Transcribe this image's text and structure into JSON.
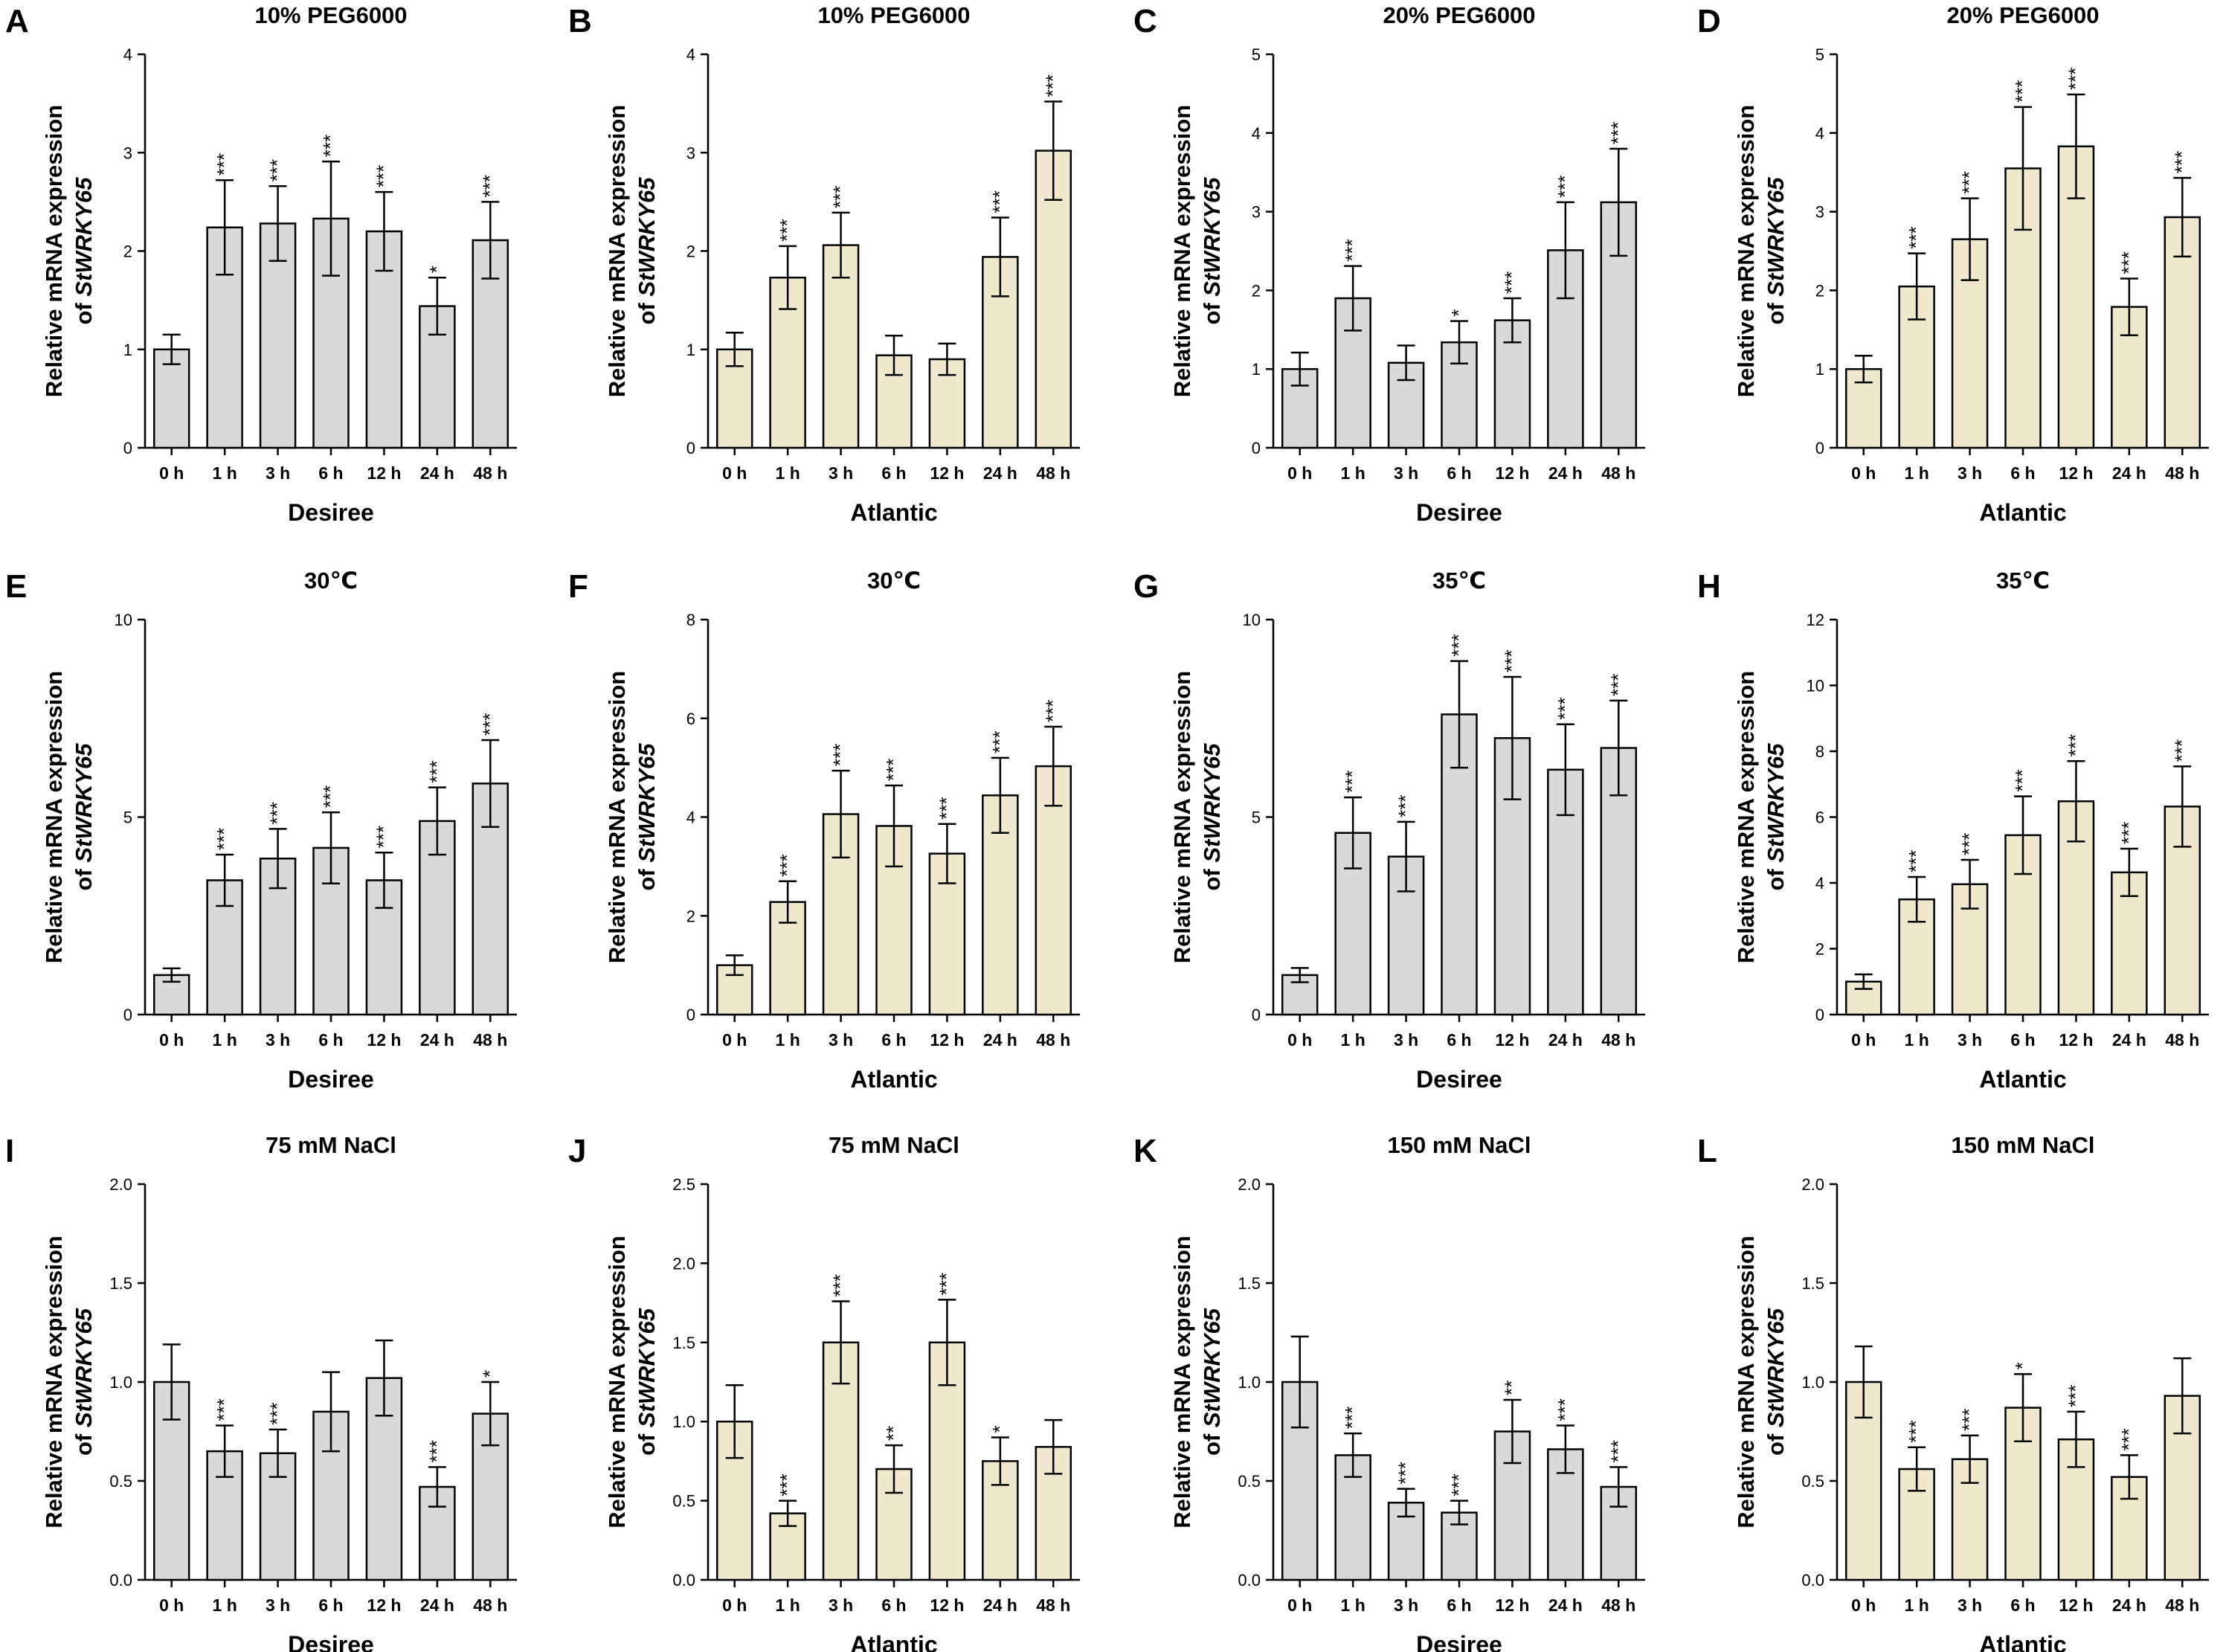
{
  "figure": {
    "y_label_prefix": "Relative mRNA expression",
    "y_label_of": "of ",
    "y_label_gene": "StWRKY65"
  },
  "colors": {
    "Desiree": "#d9d9d9",
    "Atlantic": "#efe8cc",
    "stroke": "#000000"
  },
  "chart_data": [
    {
      "type": "bar",
      "panel": "A",
      "title": "10% PEG6000",
      "xlabel": "Desiree",
      "ylim": [
        0,
        4
      ],
      "yticks": [
        "0",
        "1",
        "2",
        "3",
        "4"
      ],
      "categories": [
        "0 h",
        "1 h",
        "3 h",
        "6 h",
        "12 h",
        "24 h",
        "48 h"
      ],
      "values": [
        1.0,
        2.24,
        2.28,
        2.33,
        2.2,
        1.44,
        2.11
      ],
      "errors": [
        0.15,
        0.48,
        0.38,
        0.58,
        0.4,
        0.29,
        0.39
      ],
      "significance": [
        "",
        "***",
        "***",
        "***",
        "***",
        "*",
        "***"
      ]
    },
    {
      "type": "bar",
      "panel": "B",
      "title": "10% PEG6000",
      "xlabel": "Atlantic",
      "ylim": [
        0,
        4
      ],
      "yticks": [
        "0",
        "1",
        "2",
        "3",
        "4"
      ],
      "categories": [
        "0 h",
        "1 h",
        "3 h",
        "6 h",
        "12 h",
        "24 h",
        "48 h"
      ],
      "values": [
        1.0,
        1.73,
        2.06,
        0.94,
        0.9,
        1.94,
        3.02
      ],
      "errors": [
        0.17,
        0.32,
        0.33,
        0.2,
        0.16,
        0.4,
        0.5
      ],
      "significance": [
        "",
        "***",
        "***",
        "",
        "",
        "***",
        "***"
      ]
    },
    {
      "type": "bar",
      "panel": "C",
      "title": "20% PEG6000",
      "xlabel": "Desiree",
      "ylim": [
        0,
        5
      ],
      "yticks": [
        "0",
        "1",
        "2",
        "3",
        "4",
        "5"
      ],
      "categories": [
        "0 h",
        "1 h",
        "3 h",
        "6 h",
        "12 h",
        "24 h",
        "48 h"
      ],
      "values": [
        1.0,
        1.9,
        1.08,
        1.34,
        1.62,
        2.51,
        3.12
      ],
      "errors": [
        0.21,
        0.41,
        0.22,
        0.27,
        0.28,
        0.61,
        0.68
      ],
      "significance": [
        "",
        "***",
        "",
        "*",
        "***",
        "***",
        "***"
      ]
    },
    {
      "type": "bar",
      "panel": "D",
      "title": "20% PEG6000",
      "xlabel": "Atlantic",
      "ylim": [
        0,
        5
      ],
      "yticks": [
        "0",
        "1",
        "2",
        "3",
        "4",
        "5"
      ],
      "categories": [
        "0 h",
        "1 h",
        "3 h",
        "6 h",
        "12 h",
        "24 h",
        "48 h"
      ],
      "values": [
        1.0,
        2.05,
        2.65,
        3.55,
        3.83,
        1.79,
        2.93
      ],
      "errors": [
        0.17,
        0.42,
        0.52,
        0.78,
        0.66,
        0.36,
        0.5
      ],
      "significance": [
        "",
        "***",
        "***",
        "***",
        "***",
        "***",
        "***"
      ]
    },
    {
      "type": "bar",
      "panel": "E",
      "title": "30℃",
      "xlabel": "Desiree",
      "ylim": [
        0,
        10
      ],
      "yticks": [
        "0",
        "5",
        "10"
      ],
      "categories": [
        "0 h",
        "1 h",
        "3 h",
        "6 h",
        "12 h",
        "24 h",
        "48 h"
      ],
      "values": [
        1.0,
        3.4,
        3.95,
        4.22,
        3.4,
        4.9,
        5.85
      ],
      "errors": [
        0.17,
        0.65,
        0.75,
        0.9,
        0.7,
        0.85,
        1.1
      ],
      "significance": [
        "",
        "***",
        "***",
        "***",
        "***",
        "***",
        "***"
      ]
    },
    {
      "type": "bar",
      "panel": "F",
      "title": "30℃",
      "xlabel": "Atlantic",
      "ylim": [
        0,
        8
      ],
      "yticks": [
        "0",
        "2",
        "4",
        "6",
        "8"
      ],
      "categories": [
        "0 h",
        "1 h",
        "3 h",
        "6 h",
        "12 h",
        "24 h",
        "48 h"
      ],
      "values": [
        1.0,
        2.28,
        4.06,
        3.82,
        3.26,
        4.44,
        5.03
      ],
      "errors": [
        0.2,
        0.42,
        0.88,
        0.82,
        0.6,
        0.76,
        0.8
      ],
      "significance": [
        "",
        "***",
        "***",
        "***",
        "***",
        "***",
        "***"
      ]
    },
    {
      "type": "bar",
      "panel": "G",
      "title": "35℃",
      "xlabel": "Desiree",
      "ylim": [
        0,
        10
      ],
      "yticks": [
        "0",
        "5",
        "10"
      ],
      "categories": [
        "0 h",
        "1 h",
        "3 h",
        "6 h",
        "12 h",
        "24 h",
        "48 h"
      ],
      "values": [
        1.0,
        4.6,
        4.0,
        7.6,
        7.0,
        6.2,
        6.75
      ],
      "errors": [
        0.18,
        0.9,
        0.88,
        1.35,
        1.55,
        1.15,
        1.2
      ],
      "significance": [
        "",
        "***",
        "***",
        "***",
        "***",
        "***",
        "***"
      ]
    },
    {
      "type": "bar",
      "panel": "H",
      "title": "35℃",
      "xlabel": "Atlantic",
      "ylim": [
        0,
        12
      ],
      "yticks": [
        "0",
        "2",
        "4",
        "6",
        "8",
        "10",
        "12"
      ],
      "categories": [
        "0 h",
        "1 h",
        "3 h",
        "6 h",
        "12 h",
        "24 h",
        "48 h"
      ],
      "values": [
        1.0,
        3.5,
        3.96,
        5.45,
        6.48,
        4.32,
        6.32
      ],
      "errors": [
        0.22,
        0.68,
        0.74,
        1.18,
        1.22,
        0.72,
        1.22
      ],
      "significance": [
        "",
        "***",
        "***",
        "***",
        "***",
        "***",
        "***"
      ]
    },
    {
      "type": "bar",
      "panel": "I",
      "title": "75 mM NaCl",
      "xlabel": "Desiree",
      "ylim": [
        0,
        2.0
      ],
      "yticks": [
        "0.0",
        "0.5",
        "1.0",
        "1.5",
        "2.0"
      ],
      "categories": [
        "0 h",
        "1 h",
        "3 h",
        "6 h",
        "12 h",
        "24 h",
        "48 h"
      ],
      "values": [
        1.0,
        0.65,
        0.64,
        0.85,
        1.02,
        0.47,
        0.84
      ],
      "errors": [
        0.19,
        0.13,
        0.12,
        0.2,
        0.19,
        0.1,
        0.16
      ],
      "significance": [
        "",
        "***",
        "***",
        "",
        "",
        "***",
        "*"
      ]
    },
    {
      "type": "bar",
      "panel": "J",
      "title": "75 mM NaCl",
      "xlabel": "Atlantic",
      "ylim": [
        0,
        2.5
      ],
      "yticks": [
        "0.0",
        "0.5",
        "1.0",
        "1.5",
        "2.0",
        "2.5"
      ],
      "categories": [
        "0 h",
        "1 h",
        "3 h",
        "6 h",
        "12 h",
        "24 h",
        "48 h"
      ],
      "values": [
        1.0,
        0.42,
        1.5,
        0.7,
        1.5,
        0.75,
        0.84
      ],
      "errors": [
        0.23,
        0.08,
        0.26,
        0.15,
        0.27,
        0.15,
        0.17
      ],
      "significance": [
        "",
        "***",
        "***",
        "**",
        "***",
        "*",
        ""
      ]
    },
    {
      "type": "bar",
      "panel": "K",
      "title": "150 mM NaCl",
      "xlabel": "Desiree",
      "ylim": [
        0,
        2.0
      ],
      "yticks": [
        "0.0",
        "0.5",
        "1.0",
        "1.5",
        "2.0"
      ],
      "categories": [
        "0 h",
        "1 h",
        "3 h",
        "6 h",
        "12 h",
        "24 h",
        "48 h"
      ],
      "values": [
        1.0,
        0.63,
        0.39,
        0.34,
        0.75,
        0.66,
        0.47
      ],
      "errors": [
        0.23,
        0.11,
        0.07,
        0.06,
        0.16,
        0.12,
        0.1
      ],
      "significance": [
        "",
        "***",
        "***",
        "***",
        "**",
        "***",
        "***"
      ]
    },
    {
      "type": "bar",
      "panel": "L",
      "title": "150 mM NaCl",
      "xlabel": "Atlantic",
      "ylim": [
        0,
        2.0
      ],
      "yticks": [
        "0.0",
        "0.5",
        "1.0",
        "1.5",
        "2.0"
      ],
      "categories": [
        "0 h",
        "1 h",
        "3 h",
        "6 h",
        "12 h",
        "24 h",
        "48 h"
      ],
      "values": [
        1.0,
        0.56,
        0.61,
        0.87,
        0.71,
        0.52,
        0.93
      ],
      "errors": [
        0.18,
        0.11,
        0.12,
        0.17,
        0.14,
        0.11,
        0.19
      ],
      "significance": [
        "",
        "***",
        "***",
        "*",
        "***",
        "***",
        ""
      ]
    }
  ]
}
